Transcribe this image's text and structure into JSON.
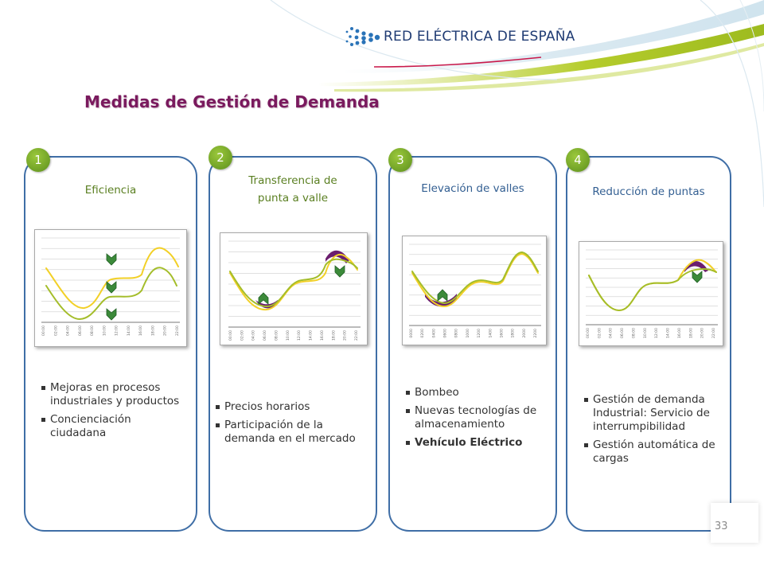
{
  "header": {
    "company": "RED ELÉCTRICA DE ESPAÑA",
    "title": "Medidas de Gestión de Demanda"
  },
  "colors": {
    "title": "#7a1a5e",
    "panel_border": "#3f6ea6",
    "badge_green": "#6fa12a",
    "curve_yellow": "#f2d027",
    "curve_green": "#a4bd2a",
    "fill_purple": "#6b1e6e"
  },
  "panels": [
    {
      "number": "1",
      "title_line1": "Eficiencia",
      "title_line2": "",
      "bullets": [
        {
          "text": "Mejoras en procesos industriales y productos",
          "bold": false
        },
        {
          "text": "Concienciación ciudadana",
          "bold": false
        }
      ],
      "chart_ticks": [
        "00:00",
        "02:00",
        "04:00",
        "06:00",
        "08:00",
        "10:00",
        "12:00",
        "14:00",
        "16:00",
        "18:00",
        "20:00",
        "22:00"
      ]
    },
    {
      "number": "2",
      "title_line1": "Transferencia de",
      "title_line2": "punta a valle",
      "bullets": [
        {
          "text": "Precios horarios",
          "bold": false
        },
        {
          "text": "Participación de la demanda en el mercado",
          "bold": false
        }
      ],
      "chart_ticks": [
        "00:00",
        "02:00",
        "04:00",
        "06:00",
        "08:00",
        "10:00",
        "12:00",
        "14:00",
        "16:00",
        "18:00",
        "20:00",
        "22:00"
      ]
    },
    {
      "number": "3",
      "title_line1": "Elevación de valles",
      "title_line2": "",
      "bullets": [
        {
          "text": "Bombeo",
          "bold": false
        },
        {
          "text": "Nuevas tecnologías de almacenamiento",
          "bold": false
        },
        {
          "text": "Vehículo Eléctrico",
          "bold": true
        }
      ],
      "chart_ticks": [
        "0000",
        "0200",
        "0400",
        "0600",
        "0800",
        "1000",
        "1200",
        "1400",
        "1600",
        "1800",
        "2000",
        "2200"
      ]
    },
    {
      "number": "4",
      "title_line1": "Reducción de puntas",
      "title_line2": "",
      "bullets": [
        {
          "text": "Gestión de demanda Industrial: Servicio de interrumpibilidad",
          "bold": false
        },
        {
          "text": "Gestión automática de cargas",
          "bold": false
        }
      ],
      "chart_ticks": [
        "00:00",
        "02:00",
        "04:00",
        "06:00",
        "08:00",
        "10:00",
        "12:00",
        "14:00",
        "16:00",
        "18:00",
        "20:00",
        "22:00"
      ]
    }
  ],
  "page_number": "33"
}
